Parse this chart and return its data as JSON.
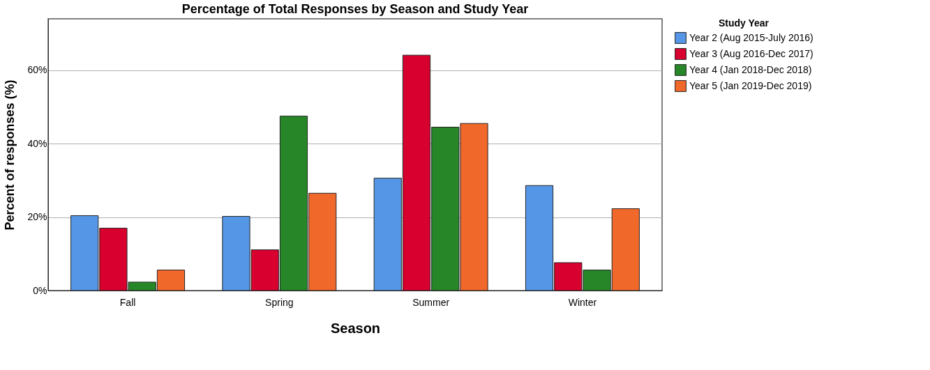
{
  "chart_data": {
    "type": "bar",
    "title": "Percentage of Total Responses by Season and Study Year",
    "xlabel": "Season",
    "ylabel": "Percent of responses (%)",
    "legend_title": "Study Year",
    "categories": [
      "Fall",
      "Spring",
      "Summer",
      "Winter"
    ],
    "series": [
      {
        "name": "Year 2 (Aug 2015-July 2016)",
        "color": "#5596e6",
        "values": [
          20.4,
          20.2,
          30.6,
          28.6
        ]
      },
      {
        "name": "Year 3 (Aug 2016-Dec 2017)",
        "color": "#d8002f",
        "values": [
          17.0,
          11.1,
          64.1,
          7.6
        ]
      },
      {
        "name": "Year 4 (Jan 2018-Dec 2018)",
        "color": "#278728",
        "values": [
          2.3,
          47.5,
          44.5,
          5.6
        ]
      },
      {
        "name": "Year 5 (Jan 2019-Dec 2019)",
        "color": "#f1682b",
        "values": [
          5.6,
          26.5,
          45.5,
          22.3
        ]
      }
    ],
    "ylim": [
      0,
      74
    ],
    "yticks": [
      {
        "value": 0,
        "label": "0%"
      },
      {
        "value": 20,
        "label": "20%"
      },
      {
        "value": 40,
        "label": "40%"
      },
      {
        "value": 60,
        "label": "60%"
      }
    ],
    "grid": "y",
    "legend": "top right"
  }
}
